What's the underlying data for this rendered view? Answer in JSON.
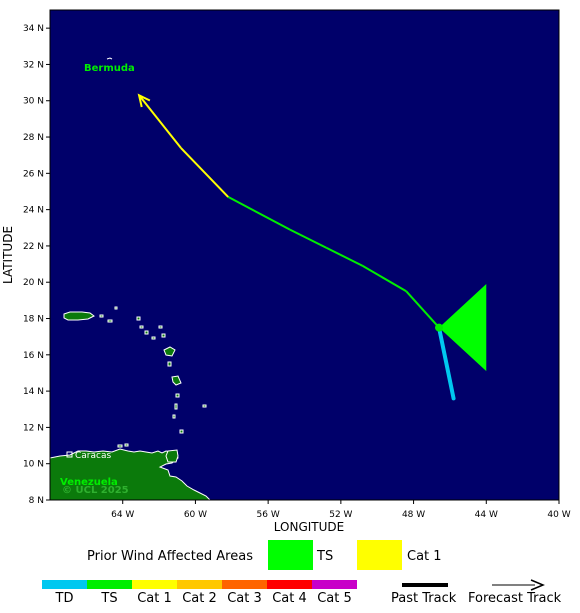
{
  "map": {
    "axes": {
      "xlabel": "LONGITUDE",
      "ylabel": "LATITUDE",
      "x_ticks": [
        "64 W",
        "60 W",
        "56 W",
        "52 W",
        "48 W",
        "44 W",
        "40 W"
      ],
      "y_ticks": [
        "34 N",
        "32 N",
        "30 N",
        "28 N",
        "26 N",
        "24 N",
        "22 N",
        "20 N",
        "18 N",
        "16 N",
        "14 N",
        "12 N",
        "10 N",
        "8 N"
      ],
      "lon_range": [
        -68,
        -40
      ],
      "lat_range": [
        8,
        35
      ]
    },
    "labels": {
      "bermuda": "Bermuda",
      "caracas": "Caracas",
      "venezuela": "Venezuela",
      "copyright": "© UCL 2025"
    },
    "colors": {
      "ocean": "#00006a",
      "land": "#0b7a0b",
      "past_track": "#00c8f0",
      "forecast_ts": "#00ee00",
      "forecast_cat1": "#ffff00",
      "wind_area_ts": "#00ff00"
    },
    "past_track": [
      {
        "lon": -45.8,
        "lat": 13.6
      },
      {
        "lon": -46.6,
        "lat": 17.5
      }
    ],
    "forecast_track": [
      {
        "lon": -46.6,
        "lat": 17.5,
        "category": "TS"
      },
      {
        "lon": -48.4,
        "lat": 19.5,
        "category": "TS"
      },
      {
        "lon": -50.8,
        "lat": 20.9,
        "category": "TS"
      },
      {
        "lon": -52.8,
        "lat": 21.9,
        "category": "TS"
      },
      {
        "lon": -54.8,
        "lat": 22.9,
        "category": "TS"
      },
      {
        "lon": -58.2,
        "lat": 24.7,
        "category": "TS"
      },
      {
        "lon": -60.8,
        "lat": 27.4,
        "category": "Cat 1"
      },
      {
        "lon": -63.1,
        "lat": 30.3,
        "category": "Cat 1"
      }
    ],
    "current_position": {
      "lon": -46.6,
      "lat": 17.5
    }
  },
  "legend": {
    "wind_title": "Prior Wind Affected Areas",
    "wind_items": [
      {
        "label": "TS",
        "color": "#00ff00"
      },
      {
        "label": "Cat 1",
        "color": "#ffff00"
      }
    ],
    "scale": [
      {
        "label": "TD",
        "color": "#00c8f0"
      },
      {
        "label": "TS",
        "color": "#00ee00"
      },
      {
        "label": "Cat 1",
        "color": "#ffff00"
      },
      {
        "label": "Cat 2",
        "color": "#ffc800"
      },
      {
        "label": "Cat 3",
        "color": "#ff6400"
      },
      {
        "label": "Cat 4",
        "color": "#ff0000"
      },
      {
        "label": "Cat 5",
        "color": "#c800c8"
      }
    ],
    "past_track_label": "Past Track",
    "forecast_track_label": "Forecast Track"
  }
}
